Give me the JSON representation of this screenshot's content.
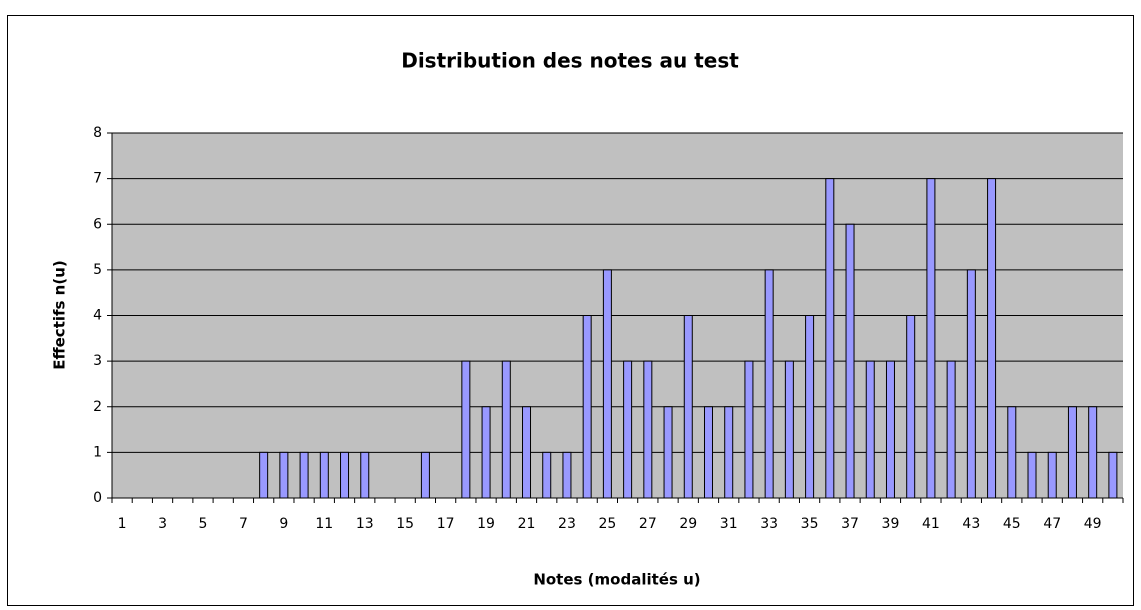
{
  "chart_data": {
    "type": "bar",
    "title": "Distribution des notes au test",
    "x_label": "Notes (modalités u)",
    "y_label": "Effectifs n(u)",
    "categories": [
      "1",
      null,
      "3",
      null,
      "5",
      null,
      "7",
      null,
      "9",
      null,
      "11",
      null,
      "13",
      null,
      "15",
      null,
      "17",
      null,
      "19",
      null,
      "21",
      null,
      "23",
      null,
      "25",
      null,
      "27",
      null,
      "29",
      null,
      "31",
      null,
      "33",
      null,
      "35",
      null,
      "37",
      null,
      "39",
      null,
      "41",
      null,
      "43",
      null,
      "45",
      null,
      "47",
      null,
      "49",
      null
    ],
    "values": [
      0,
      0,
      0,
      0,
      0,
      0,
      0,
      1,
      1,
      1,
      1,
      1,
      1,
      0,
      0,
      1,
      0,
      3,
      2,
      3,
      2,
      1,
      1,
      4,
      5,
      3,
      3,
      2,
      4,
      2,
      2,
      3,
      5,
      3,
      4,
      7,
      6,
      3,
      3,
      4,
      7,
      3,
      5,
      7,
      2,
      1,
      1,
      2,
      2,
      1
    ],
    "color": "#9999ff",
    "ylim": [
      0,
      8
    ],
    "yticks": [
      0,
      1,
      2,
      3,
      4,
      5,
      6,
      7,
      8
    ],
    "grid": true
  }
}
